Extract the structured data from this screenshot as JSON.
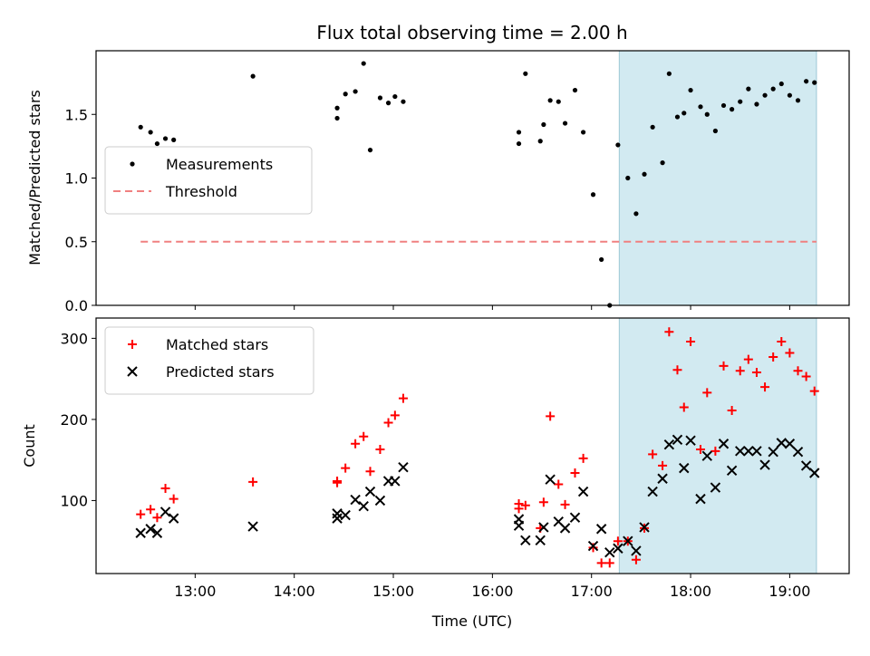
{
  "chart_data": {
    "type": "scatter",
    "title": "Flux total observing time = 2.00 h",
    "shared_x": {
      "label": "Time (UTC)",
      "range_hours": [
        12.0,
        19.6
      ],
      "ticks": [
        "13:00",
        "14:00",
        "15:00",
        "16:00",
        "17:00",
        "18:00",
        "19:00"
      ],
      "tick_values_hours": [
        13,
        14,
        15,
        16,
        17,
        18,
        19
      ]
    },
    "highlight_span_hours": [
      17.28,
      19.27
    ],
    "colors": {
      "measurement": "#000000",
      "threshold": "#f08080",
      "matched": "#ff0000",
      "predicted": "#000000",
      "highlight": "#add8e6"
    },
    "panels": [
      {
        "ylabel": "Matched/Predicted stars",
        "ylim": [
          0,
          2.0
        ],
        "yticks": [
          "0.0",
          "0.5",
          "1.0",
          "1.5"
        ],
        "ytick_values": [
          0,
          0.5,
          1.0,
          1.5
        ],
        "legend": {
          "placement": "center-left",
          "entries": [
            "Measurements",
            "Threshold"
          ]
        },
        "threshold": {
          "name": "Threshold",
          "value": 0.5,
          "x_range_hours": [
            12.45,
            19.27
          ]
        },
        "series": [
          {
            "name": "Measurements",
            "marker": "dot",
            "points": [
              [
                "12:27",
                1.4
              ],
              [
                "12:33",
                1.36
              ],
              [
                "12:37",
                1.27
              ],
              [
                "12:42",
                1.31
              ],
              [
                "12:47",
                1.3
              ],
              [
                "13:35",
                1.8
              ],
              [
                "14:26",
                1.55
              ],
              [
                "14:26",
                1.47
              ],
              [
                "14:31",
                1.66
              ],
              [
                "14:37",
                1.68
              ],
              [
                "14:42",
                1.9
              ],
              [
                "14:46",
                1.22
              ],
              [
                "14:52",
                1.63
              ],
              [
                "14:57",
                1.59
              ],
              [
                "15:01",
                1.64
              ],
              [
                "15:06",
                1.6
              ],
              [
                "16:16",
                1.36
              ],
              [
                "16:16",
                1.27
              ],
              [
                "16:20",
                1.82
              ],
              [
                "16:29",
                1.29
              ],
              [
                "16:31",
                1.42
              ],
              [
                "16:35",
                1.61
              ],
              [
                "16:40",
                1.6
              ],
              [
                "16:44",
                1.43
              ],
              [
                "16:50",
                1.69
              ],
              [
                "16:55",
                1.36
              ],
              [
                "17:01",
                0.87
              ],
              [
                "17:06",
                0.36
              ],
              [
                "17:11",
                0.0
              ],
              [
                "17:16",
                1.26
              ],
              [
                "17:22",
                1.0
              ],
              [
                "17:27",
                0.72
              ],
              [
                "17:32",
                1.03
              ],
              [
                "17:37",
                1.4
              ],
              [
                "17:43",
                1.12
              ],
              [
                "17:47",
                1.82
              ],
              [
                "17:52",
                1.48
              ],
              [
                "17:56",
                1.51
              ],
              [
                "18:00",
                1.69
              ],
              [
                "18:06",
                1.56
              ],
              [
                "18:10",
                1.5
              ],
              [
                "18:15",
                1.37
              ],
              [
                "18:20",
                1.57
              ],
              [
                "18:25",
                1.54
              ],
              [
                "18:30",
                1.6
              ],
              [
                "18:35",
                1.7
              ],
              [
                "18:40",
                1.58
              ],
              [
                "18:45",
                1.65
              ],
              [
                "18:50",
                1.7
              ],
              [
                "18:55",
                1.74
              ],
              [
                "19:00",
                1.65
              ],
              [
                "19:05",
                1.61
              ],
              [
                "19:10",
                1.76
              ],
              [
                "19:15",
                1.75
              ]
            ]
          }
        ]
      },
      {
        "ylabel": "Count",
        "ylim": [
          10,
          325
        ],
        "yticks": [
          "100",
          "200",
          "300"
        ],
        "ytick_values": [
          100,
          200,
          300
        ],
        "legend": {
          "placement": "top-left",
          "entries": [
            "Matched stars",
            "Predicted stars"
          ]
        },
        "series": [
          {
            "name": "Matched stars",
            "marker": "plus",
            "points": [
              [
                "12:27",
                83
              ],
              [
                "12:33",
                89
              ],
              [
                "12:37",
                79
              ],
              [
                "12:42",
                115
              ],
              [
                "12:47",
                102
              ],
              [
                "13:35",
                123
              ],
              [
                "14:26",
                122
              ],
              [
                "14:26",
                124
              ],
              [
                "14:31",
                140
              ],
              [
                "14:37",
                170
              ],
              [
                "14:42",
                179
              ],
              [
                "14:46",
                136
              ],
              [
                "14:52",
                163
              ],
              [
                "14:57",
                196
              ],
              [
                "15:01",
                205
              ],
              [
                "15:06",
                226
              ],
              [
                "16:16",
                96
              ],
              [
                "16:16",
                90
              ],
              [
                "16:20",
                94
              ],
              [
                "16:29",
                66
              ],
              [
                "16:31",
                98
              ],
              [
                "16:35",
                204
              ],
              [
                "16:40",
                120
              ],
              [
                "16:44",
                95
              ],
              [
                "16:50",
                134
              ],
              [
                "16:55",
                152
              ],
              [
                "17:01",
                42
              ],
              [
                "17:06",
                23
              ],
              [
                "17:11",
                23
              ],
              [
                "17:16",
                50
              ],
              [
                "17:22",
                50
              ],
              [
                "17:27",
                27
              ],
              [
                "17:32",
                66
              ],
              [
                "17:37",
                157
              ],
              [
                "17:43",
                143
              ],
              [
                "17:47",
                308
              ],
              [
                "17:52",
                261
              ],
              [
                "17:56",
                215
              ],
              [
                "18:00",
                296
              ],
              [
                "18:06",
                163
              ],
              [
                "18:10",
                233
              ],
              [
                "18:15",
                161
              ],
              [
                "18:20",
                266
              ],
              [
                "18:25",
                211
              ],
              [
                "18:30",
                260
              ],
              [
                "18:35",
                274
              ],
              [
                "18:40",
                258
              ],
              [
                "18:45",
                240
              ],
              [
                "18:50",
                277
              ],
              [
                "18:55",
                296
              ],
              [
                "19:00",
                282
              ],
              [
                "19:05",
                260
              ],
              [
                "19:10",
                253
              ],
              [
                "19:15",
                235
              ]
            ]
          },
          {
            "name": "Predicted stars",
            "marker": "x",
            "points": [
              [
                "12:27",
                60
              ],
              [
                "12:33",
                65
              ],
              [
                "12:37",
                60
              ],
              [
                "12:42",
                86
              ],
              [
                "12:47",
                78
              ],
              [
                "13:35",
                68
              ],
              [
                "14:26",
                78
              ],
              [
                "14:26",
                84
              ],
              [
                "14:31",
                82
              ],
              [
                "14:37",
                101
              ],
              [
                "14:42",
                93
              ],
              [
                "14:46",
                111
              ],
              [
                "14:52",
                100
              ],
              [
                "14:57",
                124
              ],
              [
                "15:01",
                124
              ],
              [
                "15:06",
                141
              ],
              [
                "16:16",
                77
              ],
              [
                "16:16",
                69
              ],
              [
                "16:20",
                51
              ],
              [
                "16:29",
                51
              ],
              [
                "16:31",
                67
              ],
              [
                "16:35",
                126
              ],
              [
                "16:40",
                74
              ],
              [
                "16:44",
                66
              ],
              [
                "16:50",
                79
              ],
              [
                "16:55",
                111
              ],
              [
                "17:01",
                44
              ],
              [
                "17:06",
                65
              ],
              [
                "17:11",
                36
              ],
              [
                "17:16",
                41
              ],
              [
                "17:22",
                50
              ],
              [
                "17:27",
                38
              ],
              [
                "17:32",
                67
              ],
              [
                "17:37",
                111
              ],
              [
                "17:43",
                127
              ],
              [
                "17:47",
                169
              ],
              [
                "17:52",
                175
              ],
              [
                "17:56",
                140
              ],
              [
                "18:00",
                174
              ],
              [
                "18:06",
                102
              ],
              [
                "18:10",
                155
              ],
              [
                "18:15",
                116
              ],
              [
                "18:20",
                170
              ],
              [
                "18:25",
                137
              ],
              [
                "18:30",
                161
              ],
              [
                "18:35",
                161
              ],
              [
                "18:40",
                161
              ],
              [
                "18:45",
                144
              ],
              [
                "18:50",
                160
              ],
              [
                "18:55",
                171
              ],
              [
                "19:00",
                170
              ],
              [
                "19:05",
                160
              ],
              [
                "19:10",
                143
              ],
              [
                "19:15",
                134
              ]
            ]
          }
        ]
      }
    ]
  }
}
